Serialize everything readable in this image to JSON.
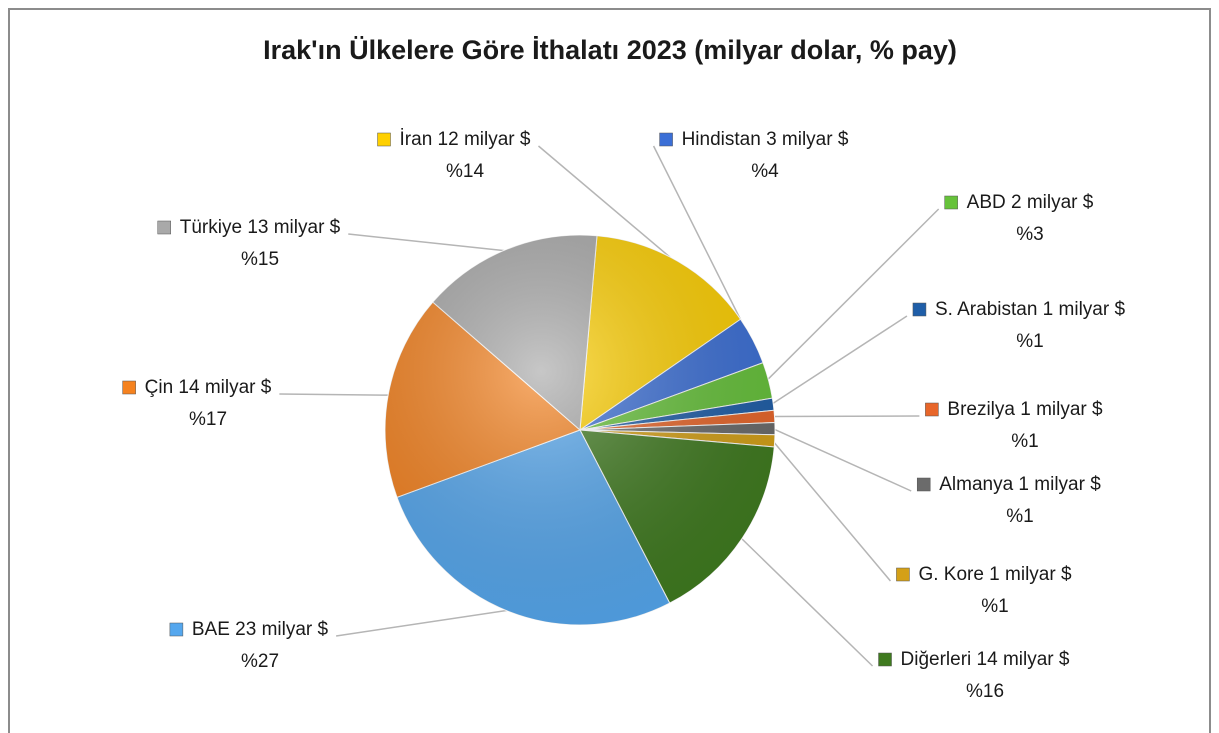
{
  "chart_data": {
    "type": "pie",
    "title": "Irak'ın Ülkelere Göre İthalatı 2023 (milyar dolar, % pay)",
    "categories": [
      "İran 12 milyar $",
      "Hindistan 3 milyar $",
      "ABD 2 milyar $",
      "S. Arabistan  1 milyar $",
      "Brezilya 1 milyar $",
      "Almanya 1 milyar $",
      "G. Kore 1 milyar $",
      "Diğerleri 14 milyar $",
      "BAE 23 milyar $",
      "Çin 14 milyar $",
      "Türkiye 13 milyar $"
    ],
    "values": [
      14,
      4,
      3,
      1,
      1,
      1,
      1,
      16,
      27,
      17,
      15
    ],
    "value_labels": [
      "%14",
      "%4",
      "%3",
      "%1",
      "%1",
      "%1",
      "%1",
      "%16",
      "%27",
      "%17",
      "%15"
    ],
    "colors": [
      "#ffd000",
      "#3b6fd6",
      "#66c23a",
      "#1f5ea8",
      "#e8662a",
      "#6b6b6b",
      "#d4a017",
      "#3f7a1f",
      "#55a7ee",
      "#f5821f",
      "#a9a9a9"
    ]
  }
}
